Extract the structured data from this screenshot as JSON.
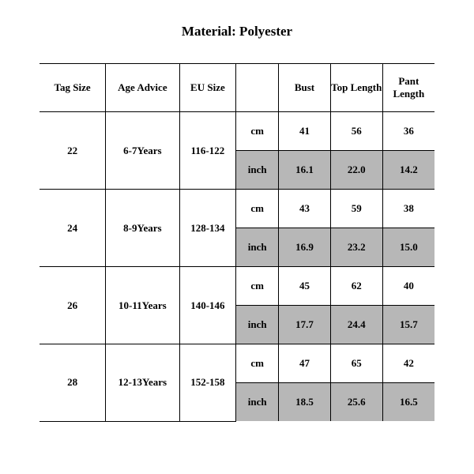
{
  "title": "Material: Polyester",
  "columns": {
    "tag": "Tag Size",
    "age": "Age Advice",
    "eu": "EU Size",
    "unit": "",
    "bust": "Bust",
    "top": "Top Length",
    "pant": "Pant Length"
  },
  "units": {
    "cm": "cm",
    "inch": "inch"
  },
  "rows": [
    {
      "tag": "22",
      "age": "6-7Years",
      "eu": "116-122",
      "cm": {
        "bust": "41",
        "top": "56",
        "pant": "36"
      },
      "inch": {
        "bust": "16.1",
        "top": "22.0",
        "pant": "14.2"
      }
    },
    {
      "tag": "24",
      "age": "8-9Years",
      "eu": "128-134",
      "cm": {
        "bust": "43",
        "top": "59",
        "pant": "38"
      },
      "inch": {
        "bust": "16.9",
        "top": "23.2",
        "pant": "15.0"
      }
    },
    {
      "tag": "26",
      "age": "10-11Years",
      "eu": "140-146",
      "cm": {
        "bust": "45",
        "top": "62",
        "pant": "40"
      },
      "inch": {
        "bust": "17.7",
        "top": "24.4",
        "pant": "15.7"
      }
    },
    {
      "tag": "28",
      "age": "12-13Years",
      "eu": "152-158",
      "cm": {
        "bust": "47",
        "top": "65",
        "pant": "42"
      },
      "inch": {
        "bust": "18.5",
        "top": "25.6",
        "pant": "16.5"
      }
    }
  ],
  "style": {
    "shade_hex": "#b7b7b7",
    "border_hex": "#000000",
    "font_family": "Times New Roman",
    "title_fontsize_pt": 17,
    "cell_fontsize_pt": 13
  }
}
